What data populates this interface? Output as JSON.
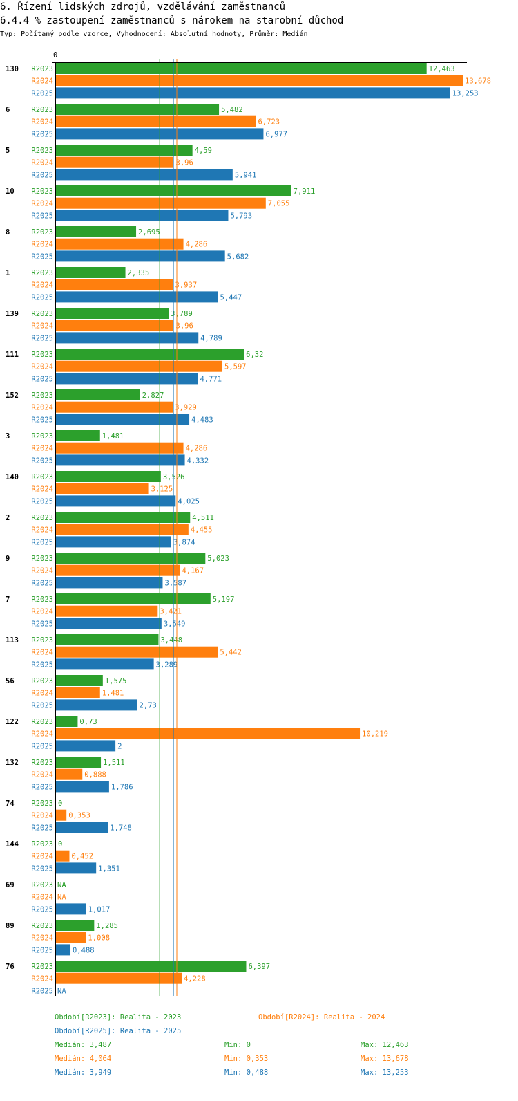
{
  "header": {
    "title": "6. Řízení lidských zdrojů, vzdělávání zaměstnanců",
    "subtitle": "6.4.4 % zastoupení zaměstnanců s nárokem na starobní důchod",
    "info": "Typ: Počítaný podle vzorce, Vyhodnocení: Absolutní hodnoty, Průměr: Medián"
  },
  "chart_data": {
    "type": "bar",
    "orientation": "horizontal",
    "axis_zero_label": "0",
    "xlim": [
      0,
      13.678
    ],
    "na_label": "NA",
    "series": [
      {
        "name": "R2023",
        "color": "#2ca02c"
      },
      {
        "name": "R2024",
        "color": "#ff7f0e"
      },
      {
        "name": "R2025",
        "color": "#1f77b4"
      }
    ],
    "categories": [
      "130",
      "6",
      "5",
      "10",
      "8",
      "1",
      "139",
      "111",
      "152",
      "3",
      "140",
      "2",
      "9",
      "7",
      "113",
      "56",
      "122",
      "132",
      "74",
      "144",
      "69",
      "89",
      "76"
    ],
    "values": [
      [
        12.463,
        13.678,
        13.253
      ],
      [
        5.482,
        6.723,
        6.977
      ],
      [
        4.59,
        3.96,
        5.941
      ],
      [
        7.911,
        7.055,
        5.793
      ],
      [
        2.695,
        4.286,
        5.682
      ],
      [
        2.335,
        3.937,
        5.447
      ],
      [
        3.789,
        3.96,
        4.789
      ],
      [
        6.32,
        5.597,
        4.771
      ],
      [
        2.827,
        3.929,
        4.483
      ],
      [
        1.481,
        4.286,
        4.332
      ],
      [
        3.526,
        3.125,
        4.025
      ],
      [
        4.511,
        4.455,
        3.874
      ],
      [
        5.023,
        4.167,
        3.587
      ],
      [
        5.197,
        3.421,
        3.549
      ],
      [
        3.448,
        5.442,
        3.289
      ],
      [
        1.575,
        1.481,
        2.73
      ],
      [
        0.73,
        10.219,
        2
      ],
      [
        1.511,
        0.888,
        1.786
      ],
      [
        0,
        0.353,
        1.748
      ],
      [
        0,
        0.452,
        1.351
      ],
      [
        null,
        null,
        1.017
      ],
      [
        1.285,
        1.008,
        0.488
      ],
      [
        6.397,
        4.228,
        null
      ]
    ],
    "medians": [
      3.487,
      4.064,
      3.949
    ]
  },
  "legend": {
    "r2023": "Období[R2023]: Realita - 2023",
    "r2024": "Období[R2024]: Realita - 2024",
    "r2025": "Období[R2025]: Realita - 2025"
  },
  "stats": [
    {
      "median": "Medián: 3,487",
      "min": "Min: 0",
      "max": "Max: 12,463"
    },
    {
      "median": "Medián: 4,064",
      "min": "Min: 0,353",
      "max": "Max: 13,678"
    },
    {
      "median": "Medián: 3,949",
      "min": "Min: 0,488",
      "max": "Max: 13,253"
    }
  ]
}
